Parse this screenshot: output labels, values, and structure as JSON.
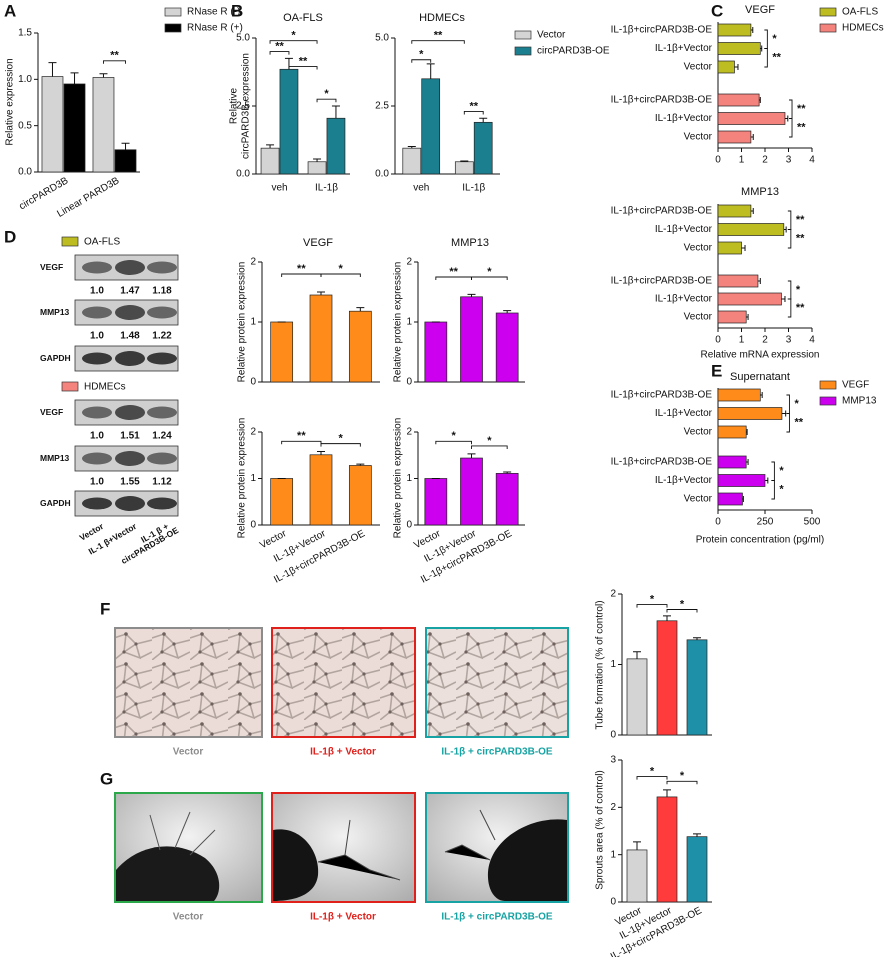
{
  "panel_labels": [
    "A",
    "B",
    "C",
    "D",
    "E",
    "F",
    "G"
  ],
  "chart_data": [
    {
      "type": "bar",
      "categories": [
        "circPARD3B",
        "Linear PARD3B"
      ],
      "series": [
        {
          "name": "RNase R (-)",
          "color": "#d4d4d4",
          "values": [
            1.03,
            1.02
          ],
          "errors": [
            0.15,
            0.04
          ]
        },
        {
          "name": "RNase R (+)",
          "color": "#000000",
          "values": [
            0.95,
            0.24
          ],
          "errors": [
            0.12,
            0.07
          ]
        }
      ],
      "ylabel": "Relative expression",
      "ylim": [
        0,
        1.5
      ],
      "yticks": [
        {
          "value": 0,
          "label": "0.0"
        },
        0.5,
        {
          "value": 1,
          "label": "1.0"
        },
        1.5
      ],
      "annotations": [
        "**"
      ]
    },
    {
      "type": "bar",
      "title": "OA-FLS",
      "categories": [
        "veh",
        "IL-1β"
      ],
      "series": [
        {
          "color": "#d4d4d4",
          "values": [
            0.95,
            0.45
          ],
          "errors": [
            0.12,
            0.1
          ]
        },
        {
          "color": "#1b7f8f",
          "values": [
            3.85,
            2.05
          ],
          "errors": [
            0.4,
            0.45
          ]
        }
      ],
      "ylabel": [
        "Relative",
        "circPARD3B expression"
      ],
      "ylim": [
        0,
        5
      ],
      "yticks": [
        {
          "value": 0,
          "label": "0.0"
        },
        2.5,
        {
          "value": 5,
          "label": "5.0"
        }
      ],
      "annotations": [
        "*",
        "**",
        "**",
        "*"
      ]
    },
    {
      "type": "bar",
      "title": "HDMECs",
      "categories": [
        "veh",
        "IL-1β"
      ],
      "series": [
        {
          "name": "Vector",
          "color": "#d4d4d4",
          "values": [
            0.95,
            0.45
          ],
          "errors": [
            0.06,
            0.03
          ]
        },
        {
          "name": "circPARD3B-OE",
          "color": "#1b7f8f",
          "values": [
            3.5,
            1.9
          ],
          "errors": [
            0.55,
            0.15
          ]
        }
      ],
      "ylim": [
        0,
        5
      ],
      "yticks": [
        {
          "value": 0,
          "label": "0.0"
        },
        2.5,
        {
          "value": 5,
          "label": "5.0"
        }
      ],
      "annotations": [
        "**",
        "*",
        "**"
      ]
    },
    {
      "type": "hbar",
      "title": "VEGF",
      "series": [
        {
          "name": "OA-FLS",
          "color": "#bdbd22",
          "categories": [
            "IL-1β+circPARD3B-OE",
            "IL-1β+Vector",
            "Vector"
          ],
          "values": [
            1.4,
            1.8,
            0.7
          ],
          "errors": [
            0.08,
            0.06,
            0.15
          ]
        },
        {
          "name": "HDMECs",
          "color": "#f4827d",
          "categories": [
            "IL-1β+circPARD3B-OE",
            "IL-1β+Vector",
            "Vector"
          ],
          "values": [
            1.75,
            2.85,
            1.4
          ],
          "errors": [
            0.05,
            0.12,
            0.1
          ]
        }
      ],
      "xlim": [
        0,
        4
      ],
      "xticks": [
        0,
        1,
        2,
        3,
        4
      ],
      "annotations": [
        "*",
        "**",
        "**",
        "**"
      ]
    },
    {
      "type": "hbar",
      "title": "MMP13",
      "series": [
        {
          "color": "#bdbd22",
          "categories": [
            "IL-1β+circPARD3B-OE",
            "IL-1β+Vector",
            "Vector"
          ],
          "values": [
            1.4,
            2.8,
            1.0
          ],
          "errors": [
            0.1,
            0.1,
            0.15
          ]
        },
        {
          "color": "#f4827d",
          "categories": [
            "IL-1β+circPARD3B-OE",
            "IL-1β+Vector",
            "Vector"
          ],
          "values": [
            1.7,
            2.7,
            1.2
          ],
          "errors": [
            0.1,
            0.15,
            0.08
          ]
        }
      ],
      "xlabel": "Relative  mRNA expression",
      "xlim": [
        0,
        4
      ],
      "xticks": [
        0,
        1,
        2,
        3,
        4
      ],
      "annotations": [
        "**",
        "**",
        "*",
        "**"
      ]
    },
    {
      "type": "bar",
      "title": "VEGF",
      "values": [
        1.0,
        1.45,
        1.18
      ],
      "errors": [
        0,
        0.05,
        0.06
      ],
      "color": "#ff8c1a",
      "ylabel": "Relative protein expression",
      "ylim": [
        0,
        2
      ],
      "yticks": [
        0,
        1,
        2
      ],
      "annotations": [
        "**",
        "*"
      ]
    },
    {
      "type": "bar",
      "title": "MMP13",
      "values": [
        1.0,
        1.42,
        1.15
      ],
      "errors": [
        0,
        0.04,
        0.04
      ],
      "color": "#cc00ee",
      "ylabel": "Relative protein expression",
      "ylim": [
        0,
        2
      ],
      "yticks": [
        0,
        1,
        2
      ],
      "annotations": [
        "**",
        "*"
      ]
    },
    {
      "type": "bar",
      "categories": [
        "Vector",
        "IL-1β+Vector",
        "IL-1β+circPARD3B-OE"
      ],
      "values": [
        1.0,
        1.51,
        1.28
      ],
      "errors": [
        0,
        0.07,
        0.03
      ],
      "color": "#ff8c1a",
      "ylabel": "Relative protein expression",
      "ylim": [
        0,
        2
      ],
      "yticks": [
        0,
        1,
        2
      ],
      "annotations": [
        "**",
        "*"
      ]
    },
    {
      "type": "bar",
      "categories": [
        "Vector",
        "IL-1β+Vector",
        "IL-1β+circPARD3B-OE"
      ],
      "values": [
        1.0,
        1.44,
        1.11
      ],
      "errors": [
        0,
        0.09,
        0.03
      ],
      "color": "#cc00ee",
      "ylabel": "Relative protein expression",
      "ylim": [
        0,
        2
      ],
      "yticks": [
        0,
        1,
        2
      ],
      "annotations": [
        "*",
        "*"
      ]
    },
    {
      "type": "hbar",
      "title": "Supernatant",
      "series": [
        {
          "name": "VEGF",
          "color": "#ff8c1a",
          "categories": [
            "IL-1β+circPARD3B-OE",
            "IL-1β+Vector",
            "Vector"
          ],
          "values": [
            225,
            340,
            150
          ],
          "errors": [
            10,
            20,
            5
          ]
        },
        {
          "name": "MMP13",
          "color": "#cc00ee",
          "categories": [
            "IL-1β+circPARD3B-OE",
            "IL-1β+Vector",
            "Vector"
          ],
          "values": [
            150,
            250,
            130
          ],
          "errors": [
            10,
            15,
            5
          ]
        }
      ],
      "xlabel": "Protein concentration (pg/ml)",
      "xlim": [
        0,
        500
      ],
      "xticks": [
        0,
        250,
        500
      ],
      "annotations": [
        "*",
        "**",
        "*",
        "*"
      ]
    },
    {
      "type": "bar",
      "values": [
        1.08,
        1.62,
        1.35
      ],
      "errors": [
        0.1,
        0.07,
        0.03
      ],
      "colors": [
        "#d4d4d4",
        "#ff3b3b",
        "#1e90a8"
      ],
      "ylabel": "Tube formation (% of control)",
      "ylim": [
        0,
        2
      ],
      "yticks": [
        0,
        1,
        2
      ],
      "annotations": [
        "*",
        "*"
      ]
    },
    {
      "type": "bar",
      "categories": [
        "Vector",
        "IL-1β+Vector",
        "IL-1β+circPARD3B-OE"
      ],
      "values": [
        1.1,
        2.22,
        1.38
      ],
      "errors": [
        0.17,
        0.15,
        0.06
      ],
      "colors": [
        "#d4d4d4",
        "#ff3b3b",
        "#1e90a8"
      ],
      "ylabel": "Sprouts area (% of control)",
      "ylim": [
        0,
        3
      ],
      "yticks": [
        0,
        1,
        2,
        3
      ],
      "annotations": [
        "*",
        "*"
      ]
    }
  ],
  "blot": {
    "groups": [
      {
        "legend": "OA-FLS",
        "color": "#bdbd22",
        "rows": [
          {
            "label": "VEGF",
            "quant": [
              "1.0",
              "1.47",
              "1.18"
            ]
          },
          {
            "label": "MMP13",
            "quant": [
              "1.0",
              "1.48",
              "1.22"
            ]
          },
          {
            "label": "GAPDH"
          }
        ]
      },
      {
        "legend": "HDMECs",
        "color": "#f4827d",
        "rows": [
          {
            "label": "VEGF",
            "quant": [
              "1.0",
              "1.51",
              "1.24"
            ]
          },
          {
            "label": "MMP13",
            "quant": [
              "1.0",
              "1.55",
              "1.12"
            ]
          },
          {
            "label": "GAPDH"
          }
        ]
      }
    ],
    "lanes": [
      [
        "Vector"
      ],
      [
        "IL-1 β+Vector"
      ],
      [
        "IL-1 β +",
        "circPARD3B-OE"
      ]
    ]
  },
  "images": {
    "F": {
      "captions": [
        "Vector",
        "IL-1β + Vector",
        "IL-1β + circPARD3B-OE"
      ]
    },
    "G": {
      "captions": [
        "Vector",
        "IL-1β + Vector",
        "IL-1β + circPARD3B-OE"
      ]
    }
  }
}
